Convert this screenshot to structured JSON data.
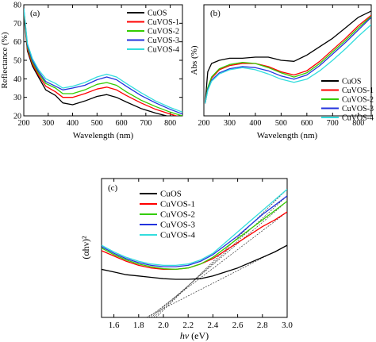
{
  "series_colors": {
    "CuOS": "#000000",
    "CuVOS-1": "#ff0000",
    "CuVOS-2": "#33cc00",
    "CuVOS-3": "#2233dd",
    "CuVOS-4": "#33dddd"
  },
  "chart_data": [
    {
      "panel": "(a)",
      "type": "line",
      "xlabel": "Wavelength (nm)",
      "ylabel": "Reflectance (%)",
      "xlim": [
        200,
        850
      ],
      "ylim": [
        20,
        80
      ],
      "xticks": [
        "200",
        "300",
        "400",
        "500",
        "600",
        "700",
        "800"
      ],
      "yticks": [
        "20",
        "30",
        "40",
        "50",
        "60",
        "70",
        "80"
      ],
      "legend": "top-right",
      "series": [
        {
          "name": "CuOS",
          "x": [
            200,
            215,
            235,
            260,
            290,
            330,
            360,
            400,
            450,
            500,
            540,
            580,
            620,
            680,
            740,
            800,
            850
          ],
          "y": [
            75,
            55,
            47,
            41,
            34,
            31,
            27,
            26,
            28,
            30.5,
            31.5,
            30,
            27.5,
            24,
            21.5,
            19.5,
            18
          ]
        },
        {
          "name": "CuVOS-1",
          "x": [
            200,
            215,
            235,
            260,
            290,
            330,
            360,
            400,
            450,
            500,
            540,
            580,
            620,
            680,
            740,
            800,
            850
          ],
          "y": [
            76,
            56,
            48,
            42,
            36,
            33,
            30,
            30,
            32,
            34.5,
            35.5,
            34,
            31,
            27,
            23.5,
            21,
            19
          ]
        },
        {
          "name": "CuVOS-2",
          "x": [
            200,
            215,
            235,
            260,
            290,
            330,
            360,
            400,
            450,
            500,
            540,
            580,
            620,
            680,
            740,
            800,
            850
          ],
          "y": [
            77,
            57,
            49,
            43,
            37.5,
            35,
            32,
            32,
            34,
            37,
            38,
            36.5,
            33,
            28.5,
            25,
            22,
            20
          ]
        },
        {
          "name": "CuVOS-3",
          "x": [
            200,
            215,
            235,
            260,
            290,
            330,
            360,
            400,
            450,
            500,
            540,
            580,
            620,
            680,
            740,
            800,
            850
          ],
          "y": [
            78,
            58,
            50,
            44,
            38.5,
            36,
            34,
            35,
            36.5,
            39.5,
            41,
            39.5,
            36,
            31,
            27,
            23.5,
            21
          ]
        },
        {
          "name": "CuVOS-4",
          "x": [
            200,
            215,
            235,
            260,
            290,
            330,
            360,
            400,
            450,
            500,
            540,
            580,
            620,
            680,
            740,
            800,
            850
          ],
          "y": [
            78,
            59,
            51,
            45,
            40,
            37.5,
            35,
            36,
            38,
            41,
            42.5,
            41,
            37.5,
            32.5,
            28,
            24.5,
            22
          ]
        }
      ]
    },
    {
      "panel": "(b)",
      "type": "line",
      "xlabel": "Wavelength (nm)",
      "ylabel": "Abs (%)",
      "xlim": [
        200,
        850
      ],
      "xticks": [
        "200",
        "300",
        "400",
        "500",
        "600",
        "700",
        "800"
      ],
      "legend": "bottom-right",
      "series": [
        {
          "name": "CuOS",
          "x": [
            205,
            215,
            230,
            260,
            300,
            350,
            400,
            450,
            500,
            550,
            600,
            650,
            700,
            750,
            800,
            850
          ],
          "y": [
            0.12,
            0.42,
            0.5,
            0.53,
            0.55,
            0.55,
            0.56,
            0.56,
            0.53,
            0.52,
            0.58,
            0.66,
            0.74,
            0.84,
            0.94,
            1.0
          ]
        },
        {
          "name": "CuVOS-1",
          "x": [
            205,
            215,
            230,
            260,
            300,
            350,
            400,
            450,
            500,
            550,
            600,
            650,
            700,
            750,
            800,
            850
          ],
          "y": [
            0.12,
            0.26,
            0.36,
            0.44,
            0.48,
            0.5,
            0.5,
            0.47,
            0.42,
            0.39,
            0.43,
            0.52,
            0.63,
            0.74,
            0.86,
            0.96
          ]
        },
        {
          "name": "CuVOS-2",
          "x": [
            205,
            215,
            230,
            260,
            300,
            350,
            400,
            450,
            500,
            550,
            600,
            650,
            700,
            750,
            800,
            850
          ],
          "y": [
            0.12,
            0.27,
            0.37,
            0.45,
            0.49,
            0.51,
            0.5,
            0.46,
            0.41,
            0.37,
            0.41,
            0.5,
            0.61,
            0.72,
            0.84,
            0.95
          ]
        },
        {
          "name": "CuVOS-3",
          "x": [
            205,
            215,
            230,
            260,
            300,
            350,
            400,
            450,
            500,
            550,
            600,
            650,
            700,
            750,
            800,
            850
          ],
          "y": [
            0.12,
            0.25,
            0.34,
            0.41,
            0.45,
            0.47,
            0.46,
            0.43,
            0.38,
            0.35,
            0.39,
            0.48,
            0.59,
            0.7,
            0.82,
            0.94
          ]
        },
        {
          "name": "CuVOS-4",
          "x": [
            205,
            215,
            230,
            260,
            300,
            350,
            400,
            450,
            500,
            550,
            600,
            650,
            700,
            750,
            800,
            850
          ],
          "y": [
            0.12,
            0.24,
            0.33,
            0.4,
            0.44,
            0.46,
            0.44,
            0.4,
            0.35,
            0.32,
            0.35,
            0.43,
            0.53,
            0.64,
            0.76,
            0.87
          ]
        }
      ]
    },
    {
      "panel": "(c)",
      "type": "line",
      "xlabel_italic": "hν",
      "xlabel_rest": " (eV)",
      "ylabel": "(αhν)²",
      "xlim": [
        1.5,
        3.0
      ],
      "ylim": [
        0,
        1
      ],
      "xticks": [
        "1.6",
        "1.8",
        "2.0",
        "2.2",
        "2.4",
        "2.6",
        "2.8",
        "3.0"
      ],
      "legend": "top-left",
      "series": [
        {
          "name": "CuOS",
          "x": [
            1.5,
            1.6,
            1.7,
            1.8,
            1.9,
            2.0,
            2.1,
            2.2,
            2.3,
            2.4,
            2.5,
            2.6,
            2.7,
            2.8,
            2.9,
            3.0
          ],
          "y": [
            0.28,
            0.26,
            0.24,
            0.23,
            0.22,
            0.21,
            0.205,
            0.205,
            0.21,
            0.23,
            0.26,
            0.29,
            0.33,
            0.37,
            0.41,
            0.46
          ]
        },
        {
          "name": "CuVOS-1",
          "x": [
            1.5,
            1.6,
            1.7,
            1.8,
            1.9,
            2.0,
            2.1,
            2.2,
            2.3,
            2.4,
            2.5,
            2.6,
            2.7,
            2.8,
            2.9,
            3.0
          ],
          "y": [
            0.42,
            0.38,
            0.34,
            0.31,
            0.29,
            0.28,
            0.28,
            0.29,
            0.32,
            0.36,
            0.42,
            0.48,
            0.54,
            0.6,
            0.65,
            0.71
          ]
        },
        {
          "name": "CuVOS-2",
          "x": [
            1.5,
            1.6,
            1.7,
            1.8,
            1.9,
            2.0,
            2.1,
            2.2,
            2.3,
            2.4,
            2.5,
            2.6,
            2.7,
            2.8,
            2.9,
            3.0
          ],
          "y": [
            0.44,
            0.39,
            0.35,
            0.32,
            0.3,
            0.285,
            0.28,
            0.29,
            0.32,
            0.37,
            0.44,
            0.51,
            0.58,
            0.65,
            0.72,
            0.79
          ]
        },
        {
          "name": "CuVOS-3",
          "x": [
            1.5,
            1.6,
            1.7,
            1.8,
            1.9,
            2.0,
            2.1,
            2.2,
            2.3,
            2.4,
            2.5,
            2.6,
            2.7,
            2.8,
            2.9,
            3.0
          ],
          "y": [
            0.45,
            0.4,
            0.36,
            0.33,
            0.31,
            0.3,
            0.3,
            0.31,
            0.34,
            0.39,
            0.46,
            0.53,
            0.61,
            0.69,
            0.76,
            0.83
          ]
        },
        {
          "name": "CuVOS-4",
          "x": [
            1.5,
            1.6,
            1.7,
            1.8,
            1.9,
            2.0,
            2.1,
            2.2,
            2.3,
            2.4,
            2.5,
            2.6,
            2.7,
            2.8,
            2.9,
            3.0
          ],
          "y": [
            0.46,
            0.41,
            0.37,
            0.34,
            0.32,
            0.31,
            0.31,
            0.32,
            0.35,
            0.4,
            0.48,
            0.56,
            0.64,
            0.72,
            0.8,
            0.88
          ]
        }
      ],
      "tangent_lines": [
        {
          "x": [
            1.86,
            3.0
          ],
          "y": [
            -0.08,
            0.46
          ]
        },
        {
          "x": [
            1.88,
            3.0
          ],
          "y": [
            -0.08,
            0.71
          ]
        },
        {
          "x": [
            1.9,
            3.0
          ],
          "y": [
            -0.08,
            0.79
          ]
        },
        {
          "x": [
            1.92,
            3.0
          ],
          "y": [
            -0.08,
            0.83
          ]
        },
        {
          "x": [
            1.94,
            3.0
          ],
          "y": [
            -0.08,
            0.88
          ]
        }
      ]
    }
  ]
}
